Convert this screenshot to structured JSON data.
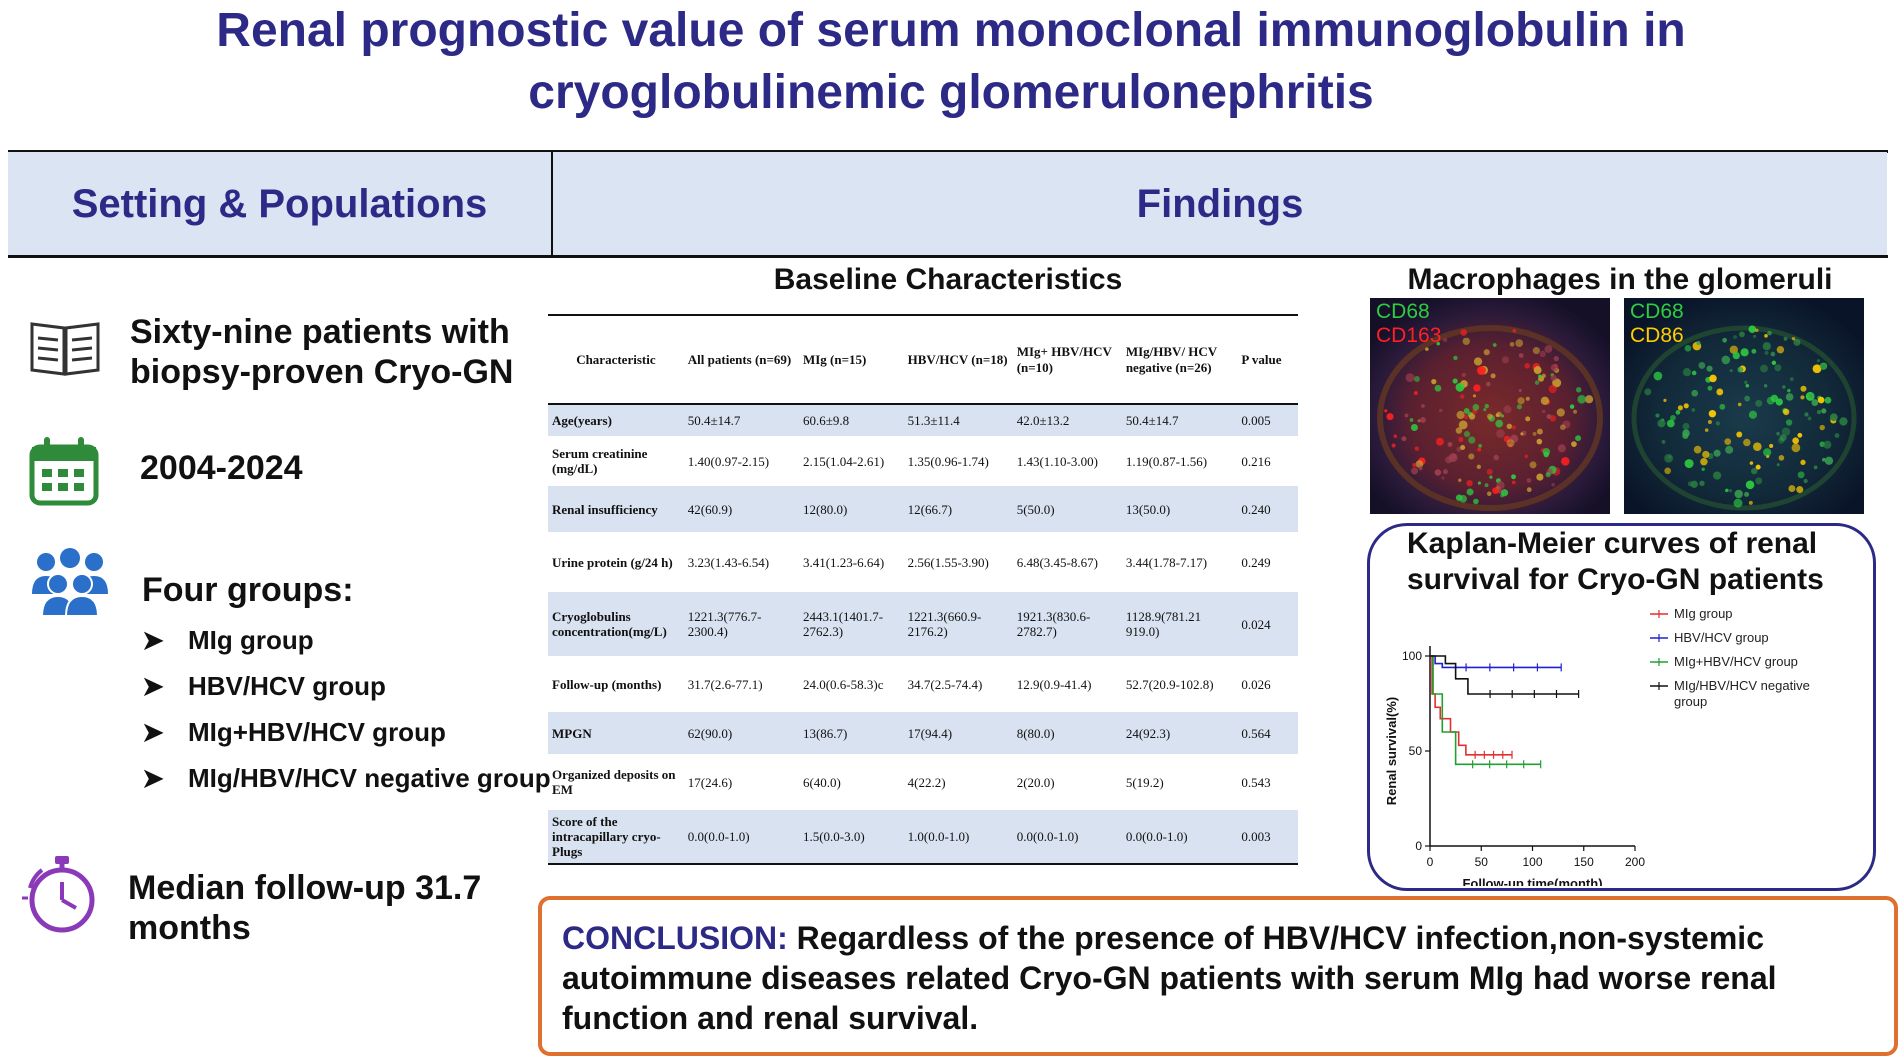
{
  "title": {
    "line1": "Renal prognostic value of serum monoclonal immunoglobulin in",
    "line2": "cryoglobulinemic glomerulonephritis"
  },
  "headers": {
    "left": "Setting & Populations",
    "right": "Findings"
  },
  "setting": {
    "patients": "Sixty-nine patients with biopsy-proven Cryo-GN",
    "years": "2004-2024",
    "groups_title": "Four groups:",
    "groups": [
      "MIg group",
      "HBV/HCV group",
      "MIg+HBV/HCV group",
      "MIg/HBV/HCV negative group"
    ],
    "followup": "Median follow-up 31.7 months"
  },
  "baseline": {
    "title": "Baseline Characteristics",
    "columns": [
      "Characteristic",
      "All patients (n=69)",
      "MIg (n=15)",
      "HBV/HCV (n=18)",
      "MIg+ HBV/HCV (n=10)",
      "MIg/HBV/ HCV negative (n=26)",
      "P value"
    ],
    "rows": [
      [
        "Age(years)",
        "50.4±14.7",
        "60.6±9.8",
        "51.3±11.4",
        "42.0±13.2",
        "50.4±14.7",
        "0.005"
      ],
      [
        "Serum creatinine (mg/dL)",
        "1.40(0.97-2.15)",
        "2.15(1.04-2.61)",
        "1.35(0.96-1.74)",
        "1.43(1.10-3.00)",
        "1.19(0.87-1.56)",
        "0.216"
      ],
      [
        "Renal insufficiency",
        "42(60.9)",
        "12(80.0)",
        "12(66.7)",
        "5(50.0)",
        "13(50.0)",
        "0.240"
      ],
      [
        "Urine protein (g/24 h)",
        "3.23(1.43-6.54)",
        "3.41(1.23-6.64)",
        "2.56(1.55-3.90)",
        "6.48(3.45-8.67)",
        "3.44(1.78-7.17)",
        "0.249"
      ],
      [
        "Cryoglobulins concentration(mg/L)",
        "1221.3(776.7-2300.4)",
        "2443.1(1401.7-2762.3)",
        "1221.3(660.9-2176.2)",
        "1921.3(830.6-2782.7)",
        "1128.9(781.21 919.0)",
        "0.024"
      ],
      [
        "Follow-up (months)",
        "31.7(2.6-77.1)",
        "24.0(0.6-58.3)c",
        "34.7(2.5-74.4)",
        "12.9(0.9-41.4)",
        "52.7(20.9-102.8)",
        "0.026"
      ],
      [
        "MPGN",
        "62(90.0)",
        "13(86.7)",
        "17(94.4)",
        "8(80.0)",
        "24(92.3)",
        "0.564"
      ],
      [
        "Organized deposits on EM",
        "17(24.6)",
        "6(40.0)",
        "4(22.2)",
        "2(20.0)",
        "5(19.2)",
        "0.543"
      ],
      [
        "Score of the intracapillary cryo-Plugs",
        "0.0(0.0-1.0)",
        "1.5(0.0-3.0)",
        "1.0(0.0-1.0)",
        "0.0(0.0-1.0)",
        "0.0(0.0-1.0)",
        "0.003"
      ]
    ]
  },
  "macrophages": {
    "title": "Macrophages in the glomeruli",
    "left_labels": [
      "CD68",
      "CD163"
    ],
    "right_labels": [
      "CD68",
      "CD86"
    ],
    "colors": {
      "cd68": "#2ecc40",
      "cd163": "#ff2020",
      "cd86": "#ffcc00"
    }
  },
  "km": {
    "title_line1": "Kaplan-Meier curves of renal",
    "title_line2": "survival for Cryo-GN patients"
  },
  "chart_data": {
    "type": "line",
    "title": "Kaplan-Meier curves of renal survival for Cryo-GN patients",
    "xlabel": "Follow-up time(month)",
    "ylabel": "Renal survival(%)",
    "xlim": [
      0,
      200
    ],
    "ylim": [
      0,
      100
    ],
    "xticks": [
      "0",
      "50",
      "100",
      "150",
      "200"
    ],
    "yticks": [
      "0",
      "50",
      "100"
    ],
    "legend": "right",
    "series": [
      {
        "name": "MIg group",
        "color": "#e03030",
        "x": [
          0,
          2,
          2,
          5,
          5,
          10,
          10,
          20,
          20,
          28,
          28,
          35,
          35,
          80
        ],
        "y": [
          100,
          100,
          80,
          80,
          73,
          73,
          67,
          67,
          60,
          60,
          53,
          53,
          48,
          48
        ]
      },
      {
        "name": "HBV/HCV group",
        "color": "#2020d0",
        "x": [
          0,
          5,
          5,
          12,
          12,
          128
        ],
        "y": [
          100,
          100,
          96,
          96,
          94,
          94
        ]
      },
      {
        "name": "MIg+HBV/HCV group",
        "color": "#20a030",
        "x": [
          0,
          3,
          3,
          12,
          12,
          25,
          25,
          108
        ],
        "y": [
          100,
          100,
          80,
          80,
          60,
          60,
          43,
          43
        ]
      },
      {
        "name": "MIg/HBV/HCV negative group",
        "color": "#111111",
        "x": [
          0,
          15,
          15,
          25,
          25,
          37,
          37,
          145
        ],
        "y": [
          100,
          100,
          96,
          96,
          88,
          88,
          80,
          80
        ]
      }
    ]
  },
  "conclusion": {
    "label": "CONCLUSION:",
    "text": " Regardless of the presence of HBV/HCV infection,non-systemic autoimmune diseases related Cryo-GN patients with serum MIg had worse renal function and renal survival."
  }
}
